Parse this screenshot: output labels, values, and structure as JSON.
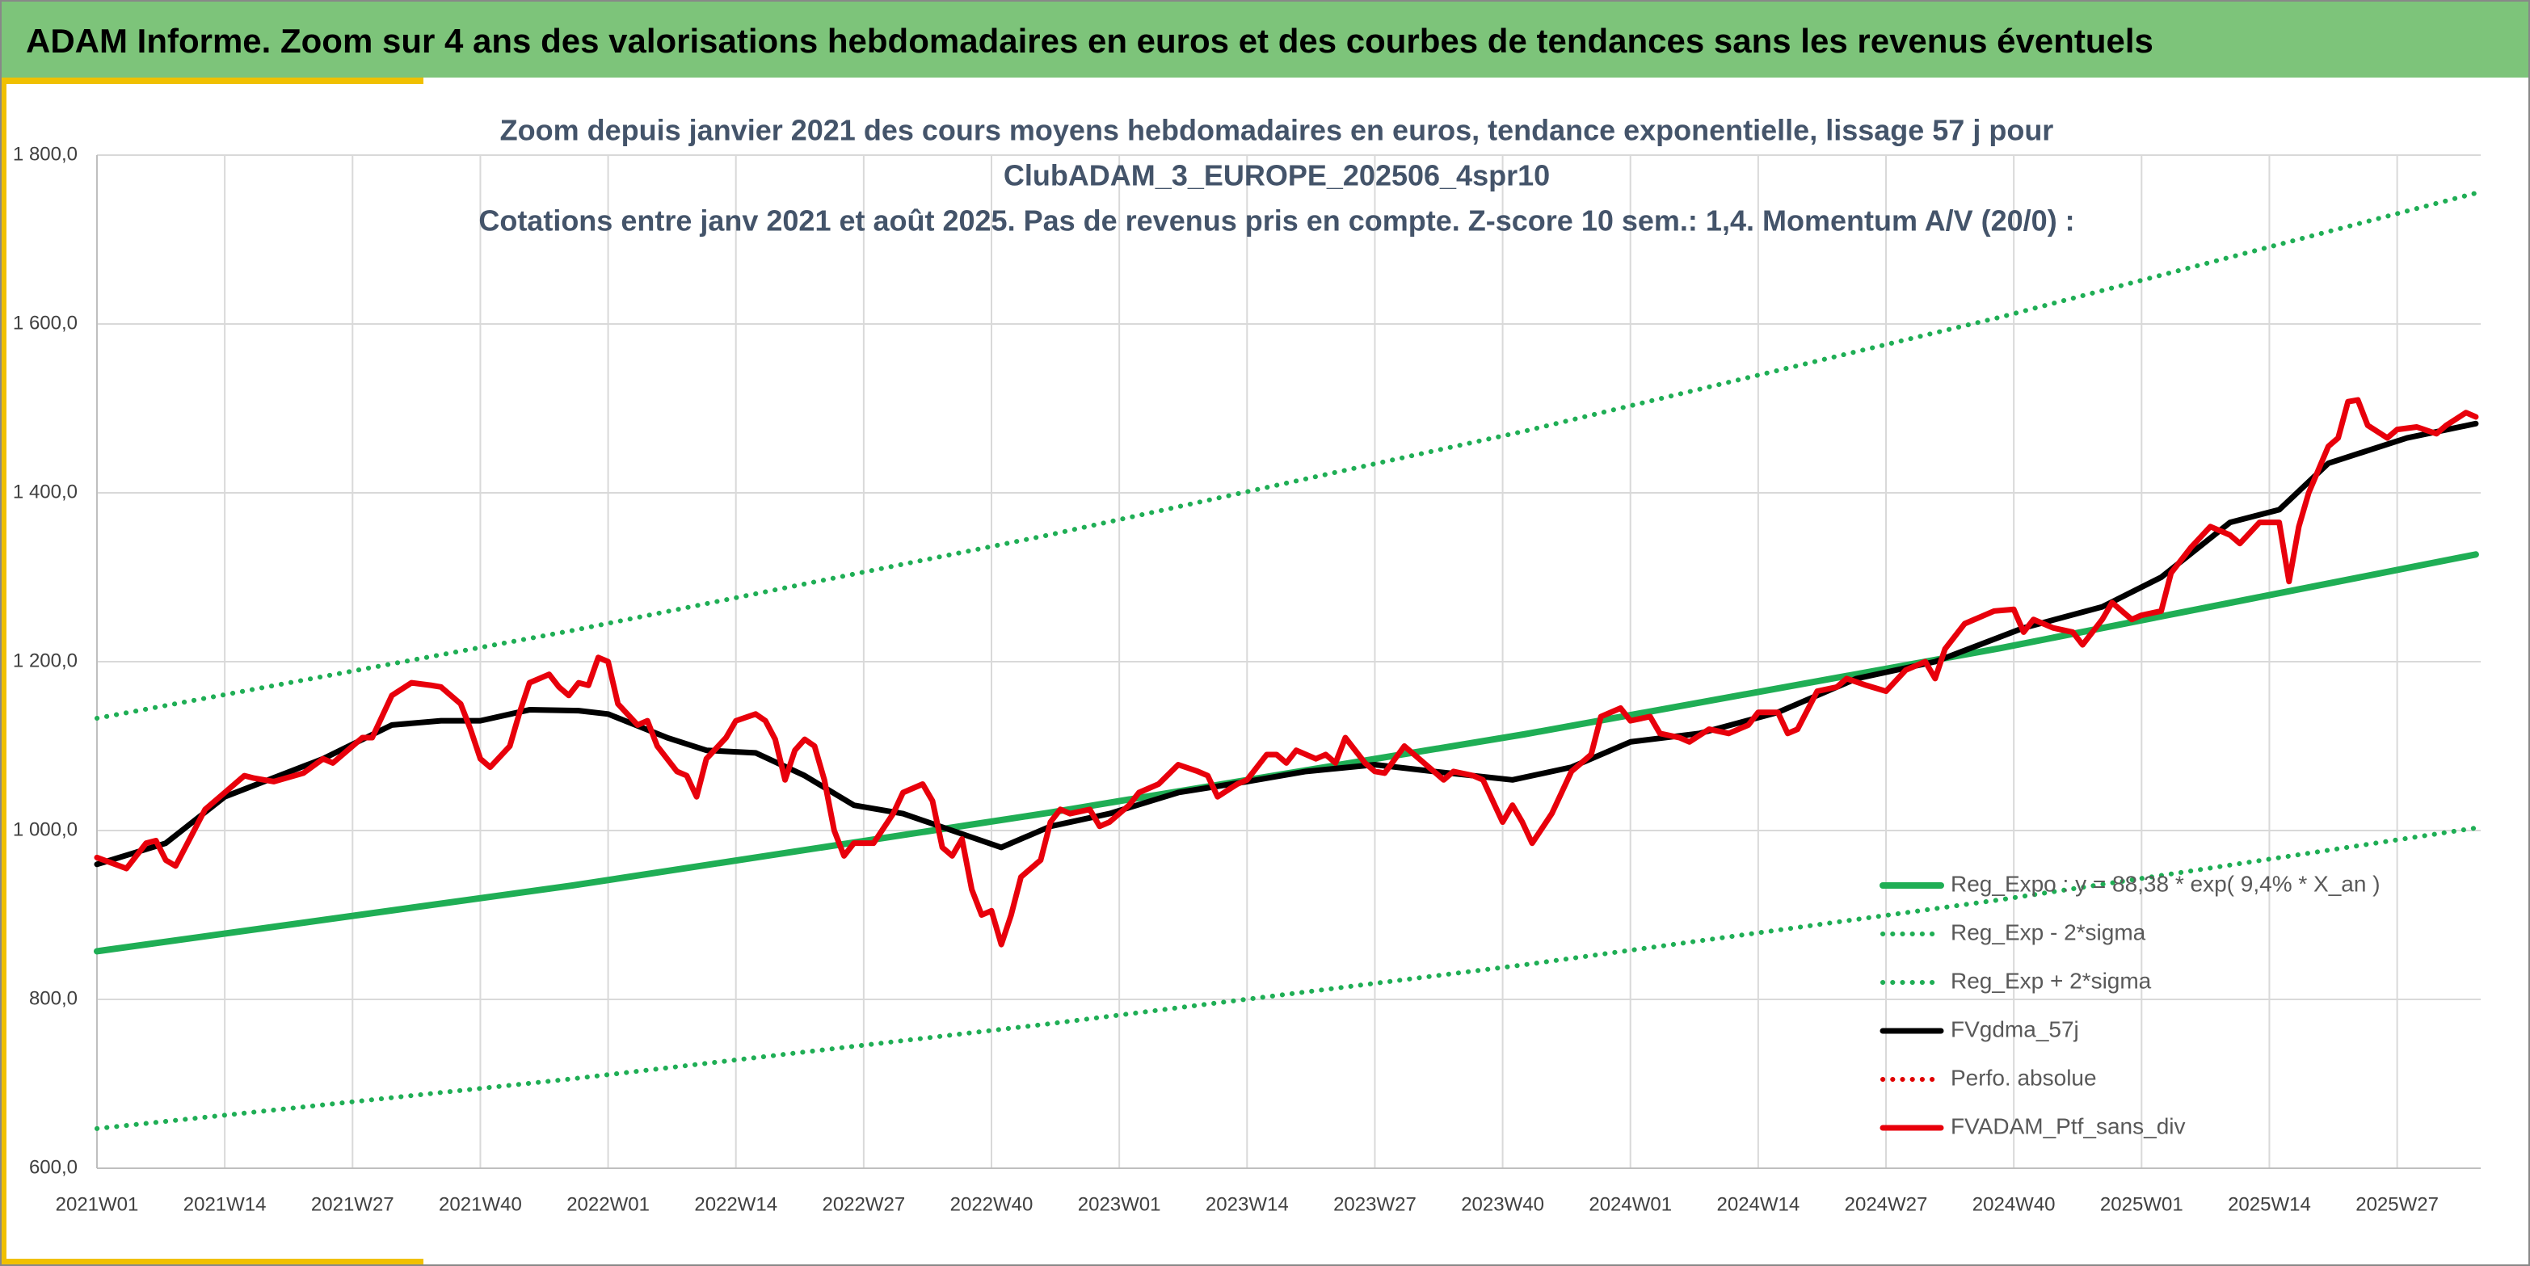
{
  "header": {
    "title": "ADAM Informe. Zoom sur 4 ans des valorisations hebdomadaires en euros et des courbes de tendances sans les revenus éventuels"
  },
  "chart_data": {
    "type": "line",
    "title": [
      "Zoom depuis janvier 2021 des cours moyens hebdomadaires en euros, tendance exponentielle, lissage 57 j pour",
      "ClubADAM_3_EUROPE_202506_4spr10",
      "Cotations entre janv 2021 et août 2025. Pas de revenus pris en compte. Z-score 10 sem.: 1,4. Momentum A/V (20/0) :"
    ],
    "xlim": [
      0,
      242.5
    ],
    "xticks": [
      {
        "value": 0,
        "label": "2021W01"
      },
      {
        "value": 13,
        "label": "2021W14"
      },
      {
        "value": 26,
        "label": "2021W27"
      },
      {
        "value": 39,
        "label": "2021W40"
      },
      {
        "value": 52,
        "label": "2022W01"
      },
      {
        "value": 65,
        "label": "2022W14"
      },
      {
        "value": 78,
        "label": "2022W27"
      },
      {
        "value": 91,
        "label": "2022W40"
      },
      {
        "value": 104,
        "label": "2023W01"
      },
      {
        "value": 117,
        "label": "2023W14"
      },
      {
        "value": 130,
        "label": "2023W27"
      },
      {
        "value": 143,
        "label": "2023W40"
      },
      {
        "value": 156,
        "label": "2024W01"
      },
      {
        "value": 169,
        "label": "2024W14"
      },
      {
        "value": 182,
        "label": "2024W27"
      },
      {
        "value": 195,
        "label": "2024W40"
      },
      {
        "value": 208,
        "label": "2025W01"
      },
      {
        "value": 221,
        "label": "2025W14"
      },
      {
        "value": 234,
        "label": "2025W27"
      }
    ],
    "ylim": [
      600,
      1800
    ],
    "yticks": [
      {
        "value": 600,
        "label": "600,0"
      },
      {
        "value": 800,
        "label": "800,0"
      },
      {
        "value": 1000,
        "label": "1 000,0"
      },
      {
        "value": 1200,
        "label": "1 200,0"
      },
      {
        "value": 1400,
        "label": "1 400,0"
      },
      {
        "value": 1600,
        "label": "1 600,0"
      },
      {
        "value": 1800,
        "label": "1 800,0"
      }
    ],
    "grid": true,
    "legend": "lower-right",
    "series": [
      {
        "name": "Reg_Expo : y = 88,38 * exp( 9,4% *  X_an )",
        "color": "#1fae55",
        "style": "solid",
        "width": 4,
        "x": [
          0,
          48.4,
          96.8,
          145.2,
          193.6,
          242
        ],
        "values": [
          857,
          935,
          1021,
          1114,
          1216,
          1327
        ]
      },
      {
        "name": "Reg_Exp - 2*sigma",
        "color": "#1fae55",
        "style": "dotted",
        "width": 3,
        "x": [
          0,
          48.4,
          96.8,
          145.2,
          193.6,
          242
        ],
        "values": [
          647,
          706,
          771,
          841,
          918,
          1003
        ]
      },
      {
        "name": "Reg_Exp + 2*sigma",
        "color": "#1fae55",
        "style": "dotted",
        "width": 3,
        "x": [
          0,
          48.4,
          96.8,
          145.2,
          193.6,
          242
        ],
        "values": [
          1133,
          1237,
          1350,
          1473,
          1608,
          1755
        ]
      },
      {
        "name": "FVgdma_57j",
        "color": "#000000",
        "style": "solid",
        "width": 3.5,
        "x": [
          0,
          7,
          13,
          23,
          30,
          35,
          39,
          44,
          49,
          52,
          58,
          62,
          67,
          72,
          77,
          82,
          87,
          92,
          97,
          103,
          110,
          117,
          123,
          130,
          136,
          144,
          150,
          156,
          163,
          171,
          179,
          187,
          196,
          204,
          210,
          217,
          222,
          227,
          235,
          242
        ],
        "values": [
          960,
          985,
          1040,
          1085,
          1125,
          1130,
          1130,
          1143,
          1142,
          1138,
          1110,
          1095,
          1092,
          1065,
          1030,
          1020,
          1000,
          980,
          1005,
          1020,
          1045,
          1058,
          1070,
          1078,
          1070,
          1060,
          1075,
          1105,
          1115,
          1140,
          1180,
          1200,
          1240,
          1265,
          1300,
          1365,
          1380,
          1435,
          1465,
          1482
        ]
      },
      {
        "name": "Perfo. absolue",
        "color": "#e00000",
        "style": "dotted",
        "width": 3,
        "x": [],
        "values": []
      },
      {
        "name": "FVADAM_Ptf_sans_div",
        "color": "#e8000b",
        "style": "solid",
        "width": 3.5,
        "x": [
          0,
          3,
          5,
          6,
          7,
          8,
          11,
          13,
          15,
          16,
          18,
          21,
          23,
          24,
          27,
          28,
          30,
          32,
          34,
          35,
          37,
          38,
          39,
          40,
          42,
          43,
          44,
          46,
          47,
          48,
          49,
          50,
          51,
          52,
          53,
          55,
          56,
          57,
          59,
          60,
          61,
          62,
          64,
          65,
          67,
          68,
          69,
          70,
          71,
          72,
          73,
          74,
          75,
          76,
          77,
          79,
          81,
          82,
          84,
          85,
          86,
          87,
          88,
          89,
          90,
          91,
          92,
          93,
          94,
          96,
          97,
          98,
          99,
          101,
          102,
          103,
          105,
          106,
          108,
          110,
          112,
          113,
          114,
          116,
          117,
          119,
          120,
          121,
          122,
          124,
          125,
          126,
          127,
          129,
          130,
          131,
          133,
          135,
          137,
          138,
          140,
          141,
          143,
          144,
          145,
          146,
          148,
          150,
          152,
          153,
          155,
          156,
          158,
          159,
          161,
          162,
          164,
          166,
          168,
          169,
          171,
          172,
          173,
          175,
          177,
          178,
          180,
          182,
          184,
          186,
          187,
          188,
          190,
          191,
          193,
          195,
          196,
          197,
          199,
          201,
          202,
          204,
          205,
          207,
          208,
          210,
          211,
          213,
          215,
          217,
          218,
          220,
          222,
          223,
          224,
          225,
          227,
          228,
          229,
          230,
          231,
          233,
          234,
          236,
          238,
          239,
          241,
          242
        ],
        "values": [
          968,
          955,
          985,
          988,
          965,
          958,
          1025,
          1045,
          1065,
          1062,
          1058,
          1068,
          1085,
          1080,
          1110,
          1110,
          1160,
          1175,
          1172,
          1170,
          1150,
          1120,
          1085,
          1075,
          1100,
          1140,
          1175,
          1185,
          1170,
          1160,
          1175,
          1172,
          1205,
          1200,
          1150,
          1125,
          1130,
          1100,
          1070,
          1065,
          1040,
          1085,
          1110,
          1130,
          1138,
          1130,
          1108,
          1060,
          1095,
          1108,
          1100,
          1060,
          1000,
          970,
          985,
          985,
          1020,
          1045,
          1055,
          1035,
          980,
          970,
          990,
          930,
          900,
          905,
          865,
          900,
          945,
          965,
          1010,
          1025,
          1020,
          1025,
          1005,
          1010,
          1030,
          1045,
          1055,
          1078,
          1070,
          1065,
          1040,
          1055,
          1060,
          1090,
          1090,
          1080,
          1095,
          1085,
          1090,
          1080,
          1110,
          1080,
          1070,
          1068,
          1100,
          1080,
          1060,
          1070,
          1065,
          1060,
          1010,
          1030,
          1010,
          985,
          1020,
          1070,
          1090,
          1135,
          1145,
          1130,
          1135,
          1115,
          1110,
          1105,
          1120,
          1115,
          1125,
          1140,
          1140,
          1115,
          1120,
          1165,
          1170,
          1180,
          1172,
          1165,
          1190,
          1200,
          1180,
          1215,
          1245,
          1250,
          1260,
          1262,
          1235,
          1250,
          1240,
          1235,
          1220,
          1250,
          1270,
          1250,
          1255,
          1260,
          1305,
          1335,
          1360,
          1350,
          1340,
          1365,
          1365,
          1295,
          1360,
          1400,
          1455,
          1465,
          1508,
          1510,
          1480,
          1465,
          1475,
          1478,
          1470,
          1480,
          1495,
          1490
        ]
      }
    ]
  }
}
